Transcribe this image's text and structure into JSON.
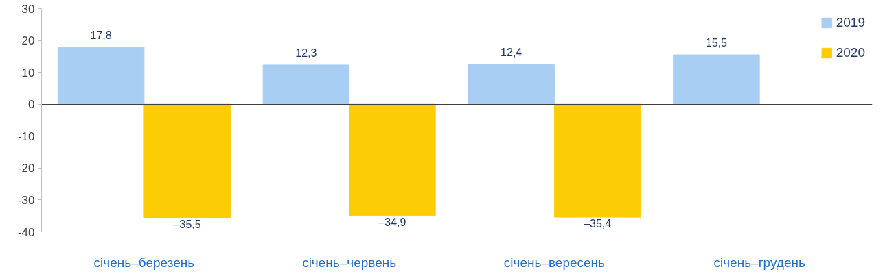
{
  "chart_data": {
    "type": "bar",
    "categories": [
      "січень–березень",
      "січень–червень",
      "січень–вересень",
      "січень–грудень"
    ],
    "series": [
      {
        "name": "2019",
        "color": "#a9cef4",
        "values": [
          17.8,
          12.3,
          12.4,
          15.5
        ],
        "value_labels": [
          "17,8",
          "12,3",
          "12,4",
          "15,5"
        ]
      },
      {
        "name": "2020",
        "color": "#fccd04",
        "values": [
          -35.5,
          -34.9,
          -35.4,
          null
        ],
        "value_labels": [
          "–35,5",
          "–34,9",
          "–35,4",
          null
        ]
      }
    ],
    "ylim": [
      -40,
      30
    ],
    "yticks": [
      -40,
      -30,
      -20,
      -10,
      0,
      10,
      20,
      30
    ],
    "legend": "top right"
  }
}
